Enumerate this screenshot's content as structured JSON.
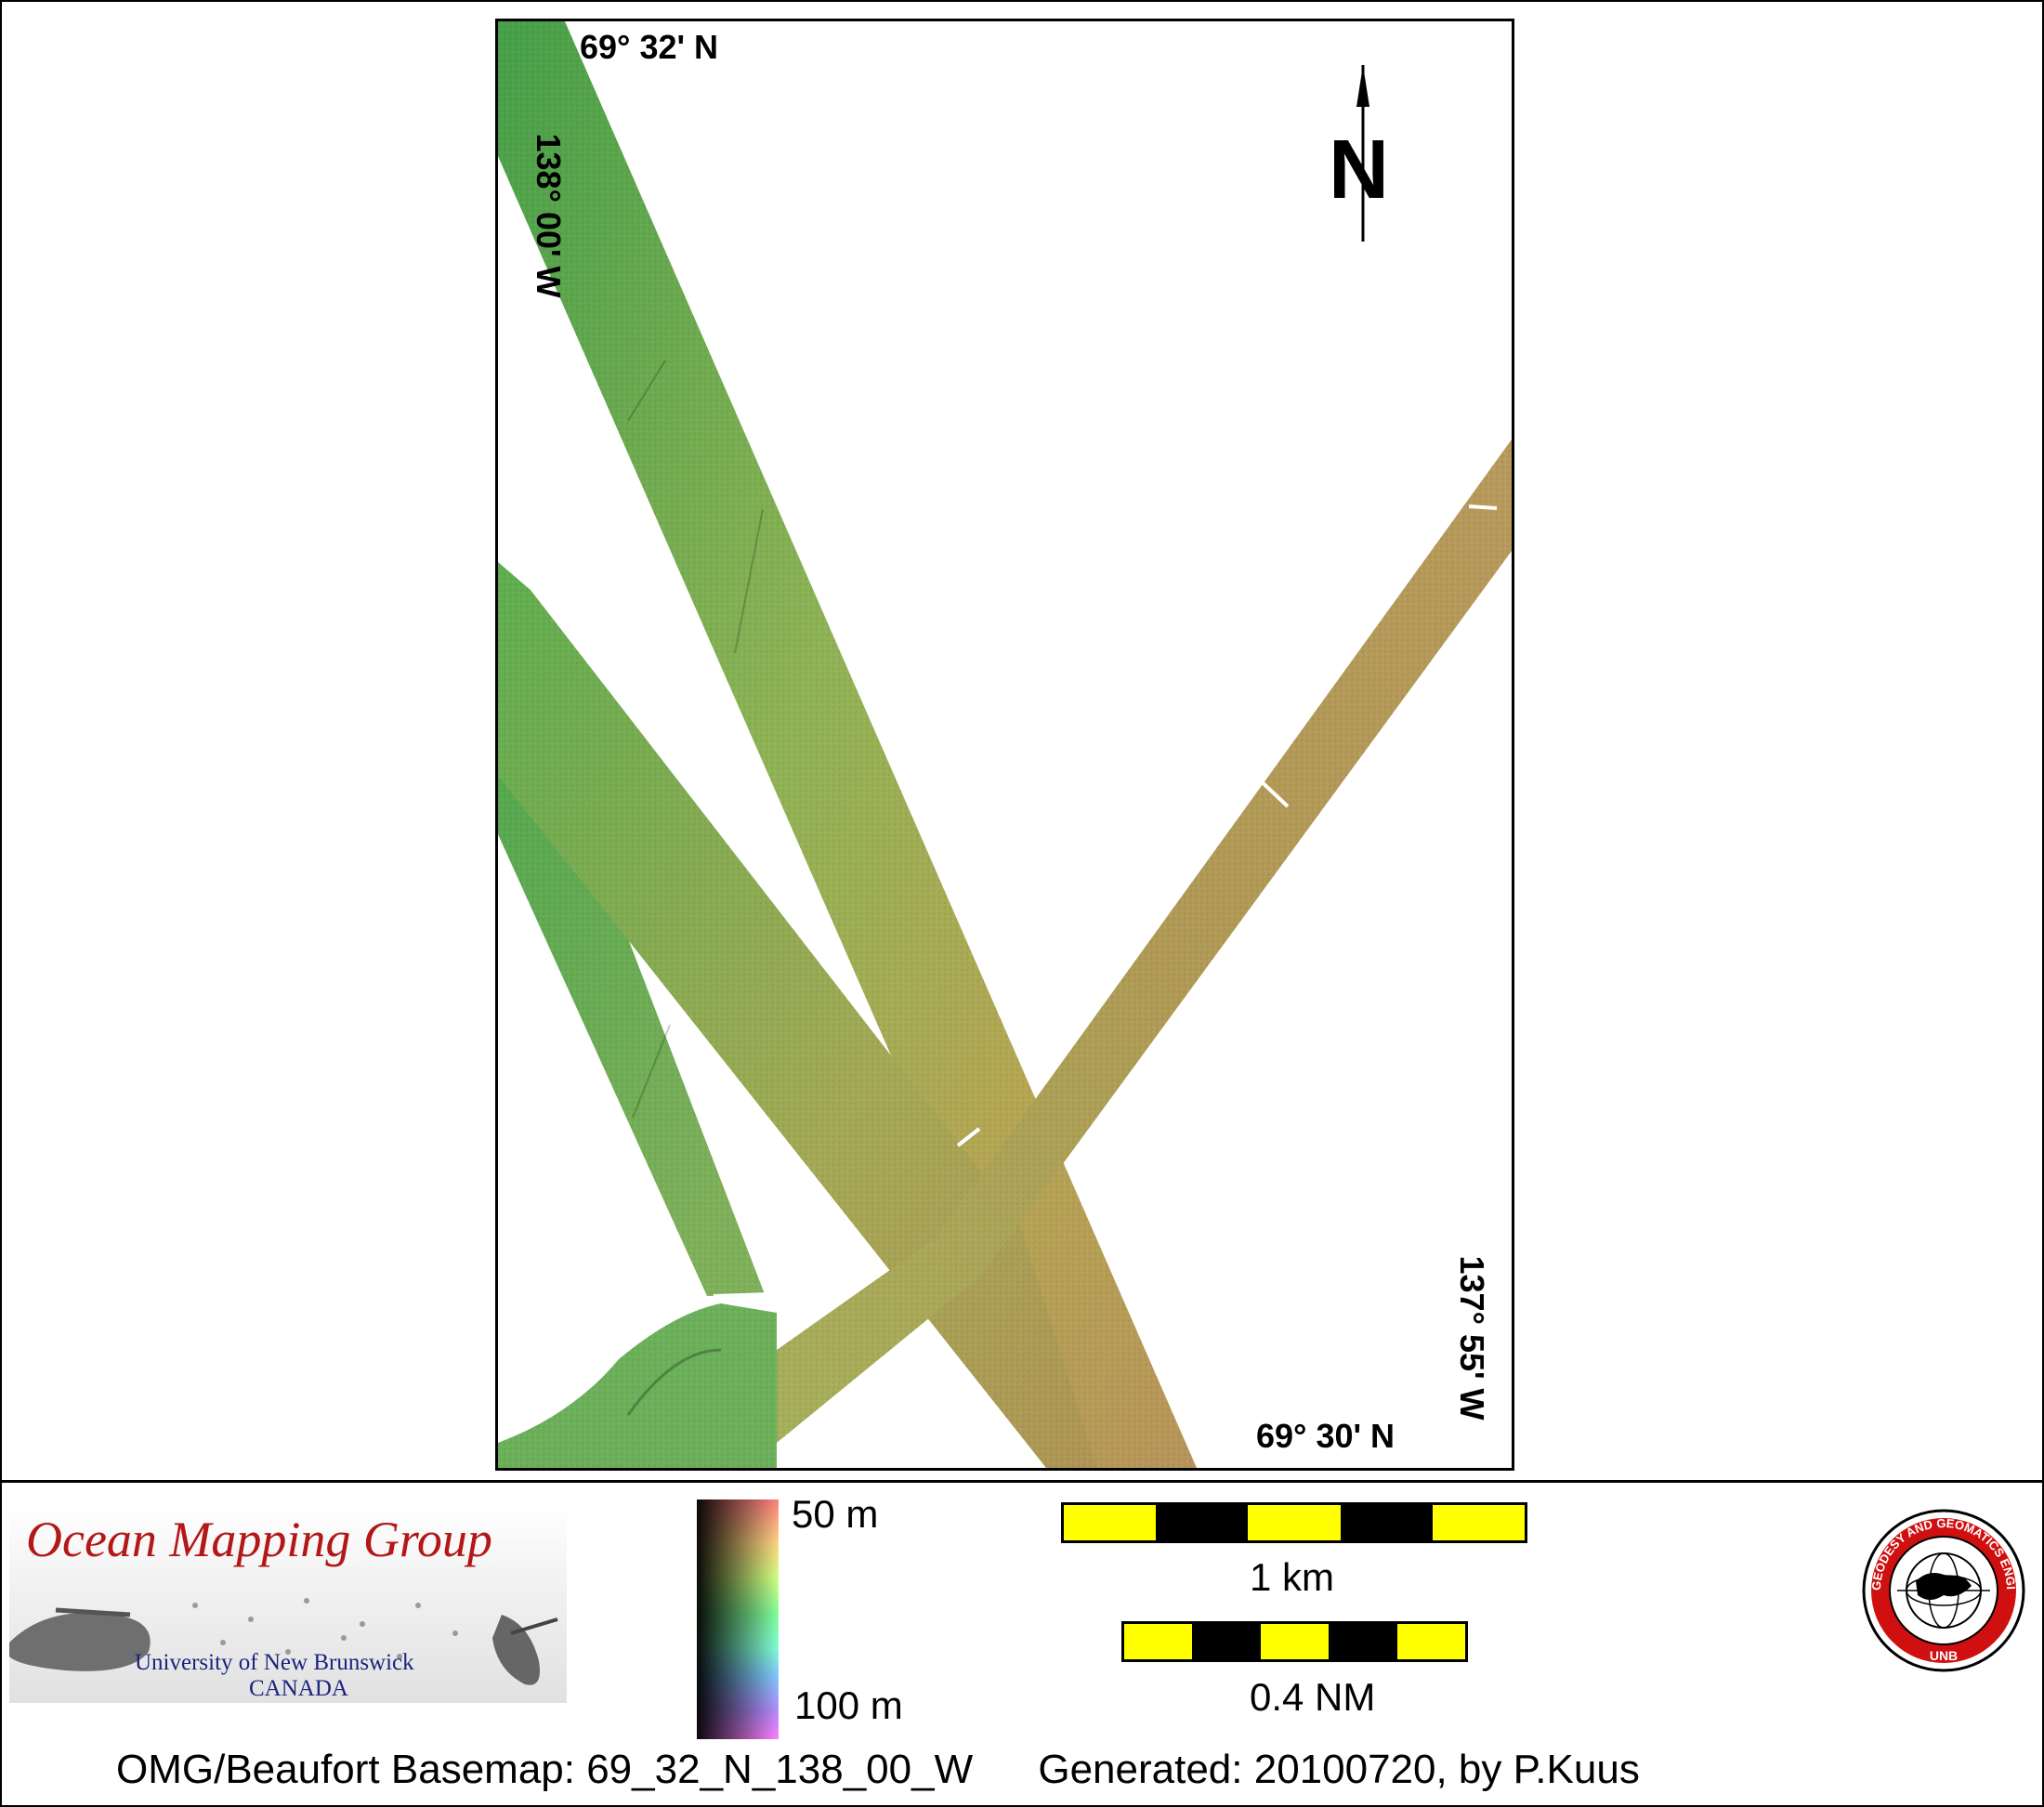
{
  "map": {
    "lat_top": "69° 32' N",
    "lat_bottom": "69° 30' N",
    "lon_left": "138° 00' W",
    "lon_right": "137° 55' W",
    "north_label": "N",
    "colors": {
      "deep_green": "#4a9a4a",
      "shallow_green": "#5fbf73",
      "mid_olive": "#a8a850",
      "tan": "#b8965a"
    }
  },
  "legend": {
    "logo_title": "Ocean Mapping Group",
    "logo_university": "University of New Brunswick",
    "logo_country": "CANADA",
    "colorbar_top": "50 m",
    "colorbar_bottom": "100 m",
    "scale_km_label": "1 km",
    "scale_nm_label": "0.4 NM",
    "seal_text": "GEODESY AND GEOMATICS ENGINEERING",
    "seal_bottom": "UNB"
  },
  "footer": {
    "basemap": "OMG/Beaufort Basemap: 69_32_N_138_00_W",
    "generated": "Generated: 20100720, by P.Kuus"
  }
}
